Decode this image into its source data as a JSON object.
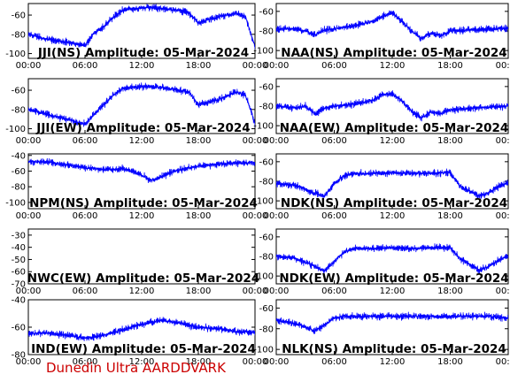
{
  "footer": "Dunedin Ultra AARDDVARK",
  "colors": {
    "trace": "#0000ff",
    "axis": "#000000",
    "footer": "#cc0000"
  },
  "chart_data": [
    {
      "type": "line",
      "title": "JJI(NS) Amplitude: 05-Mar-2024",
      "xlabel": "",
      "ylabel": "",
      "ylim": [
        -105,
        -48
      ],
      "xticks": [
        "00:00",
        "06:00",
        "12:00",
        "18:00",
        "00:00"
      ],
      "yticks": [
        -100,
        -80,
        -60
      ],
      "grid": false,
      "series": [
        {
          "x": [
            0,
            2,
            4,
            5,
            6,
            7,
            8,
            9,
            10,
            12,
            14,
            16,
            17,
            18,
            20,
            22,
            23,
            24
          ],
          "values": [
            -80,
            -85,
            -88,
            -90,
            -92,
            -78,
            -72,
            -62,
            -55,
            -52,
            -53,
            -55,
            -58,
            -68,
            -62,
            -58,
            -62,
            -93
          ]
        }
      ]
    },
    {
      "type": "line",
      "title": "NAA(NS) Amplitude: 05-Mar-2024",
      "xlabel": "",
      "ylabel": "",
      "ylim": [
        -108,
        -52
      ],
      "xticks": [
        "00:00",
        "06:00",
        "12:00",
        "18:00",
        "00:00"
      ],
      "yticks": [
        -100,
        -80,
        -60
      ],
      "grid": false,
      "series": [
        {
          "x": [
            0,
            2,
            3,
            4,
            5,
            6,
            8,
            10,
            11,
            12,
            13,
            14,
            15,
            16,
            17,
            18,
            20,
            22,
            24
          ],
          "values": [
            -78,
            -78,
            -80,
            -84,
            -79,
            -78,
            -75,
            -70,
            -65,
            -62,
            -70,
            -80,
            -88,
            -82,
            -85,
            -80,
            -79,
            -78,
            -77
          ]
        }
      ]
    },
    {
      "type": "line",
      "title": "JJI(EW) Amplitude: 05-Mar-2024",
      "xlabel": "",
      "ylabel": "",
      "ylim": [
        -105,
        -48
      ],
      "xticks": [
        "00:00",
        "06:00",
        "12:00",
        "18:00",
        "00:00"
      ],
      "yticks": [
        -100,
        -80,
        -60
      ],
      "grid": false,
      "series": [
        {
          "x": [
            0,
            2,
            4,
            5,
            6,
            7,
            8,
            9,
            10,
            12,
            14,
            16,
            17,
            18,
            20,
            22,
            23,
            24
          ],
          "values": [
            -80,
            -85,
            -90,
            -93,
            -95,
            -85,
            -75,
            -65,
            -58,
            -56,
            -57,
            -60,
            -62,
            -75,
            -70,
            -62,
            -65,
            -95
          ]
        }
      ]
    },
    {
      "type": "line",
      "title": "NAA(EW) Amplitude: 05-Mar-2024",
      "xlabel": "",
      "ylabel": "",
      "ylim": [
        -108,
        -52
      ],
      "xticks": [
        "00:00",
        "06:00",
        "12:00",
        "18:00",
        "00:00"
      ],
      "yticks": [
        -100,
        -80,
        -60
      ],
      "grid": false,
      "series": [
        {
          "x": [
            0,
            2,
            3,
            4,
            5,
            6,
            8,
            10,
            11,
            12,
            13,
            14,
            15,
            16,
            17,
            18,
            20,
            22,
            24
          ],
          "values": [
            -80,
            -82,
            -80,
            -88,
            -82,
            -80,
            -78,
            -74,
            -68,
            -67,
            -75,
            -85,
            -92,
            -86,
            -88,
            -84,
            -82,
            -81,
            -80
          ]
        }
      ]
    },
    {
      "type": "line",
      "title": "NPM(NS) Amplitude: 05-Mar-2024",
      "xlabel": "",
      "ylabel": "",
      "ylim": [
        -108,
        -38
      ],
      "xticks": [
        "00:00",
        "06:00",
        "12:00",
        "18:00",
        "00:00"
      ],
      "yticks": [
        -100,
        -80,
        -60,
        -40
      ],
      "grid": false,
      "series": [
        {
          "x": [
            0,
            2,
            4,
            6,
            8,
            9,
            10,
            11,
            12,
            13,
            14,
            15,
            16,
            18,
            20,
            22,
            24
          ],
          "values": [
            -48,
            -48,
            -52,
            -56,
            -58,
            -58,
            -57,
            -60,
            -65,
            -72,
            -68,
            -62,
            -58,
            -54,
            -51,
            -50,
            -49
          ]
        }
      ]
    },
    {
      "type": "line",
      "title": "NDK(NS) Amplitude: 05-Mar-2024",
      "xlabel": "",
      "ylabel": "",
      "ylim": [
        -108,
        -52
      ],
      "xticks": [
        "00:00",
        "06:00",
        "12:00",
        "18:00",
        "00:00"
      ],
      "yticks": [
        -100,
        -80,
        -60
      ],
      "grid": false,
      "series": [
        {
          "x": [
            0,
            2,
            3,
            4,
            5,
            6,
            7,
            8,
            10,
            12,
            14,
            16,
            18,
            19,
            20,
            21,
            22,
            23,
            24
          ],
          "values": [
            -82,
            -84,
            -88,
            -92,
            -95,
            -82,
            -75,
            -72,
            -72,
            -71,
            -72,
            -72,
            -71,
            -85,
            -90,
            -95,
            -92,
            -85,
            -82
          ]
        }
      ]
    },
    {
      "type": "line",
      "title": "NWC(EW) Amplitude: 05-Mar-2024",
      "xlabel": "",
      "ylabel": "",
      "ylim": [
        -70,
        -25
      ],
      "xticks": [
        "00:00",
        "06:00",
        "12:00",
        "18:00",
        "00:00"
      ],
      "yticks": [
        -70,
        -60,
        -50,
        -40,
        -30
      ],
      "grid": false,
      "series": []
    },
    {
      "type": "line",
      "title": "NDK(EW) Amplitude: 05-Mar-2024",
      "xlabel": "",
      "ylabel": "",
      "ylim": [
        -108,
        -52
      ],
      "xticks": [
        "00:00",
        "06:00",
        "12:00",
        "18:00",
        "00:00"
      ],
      "yticks": [
        -100,
        -80,
        -60
      ],
      "grid": false,
      "series": [
        {
          "x": [
            0,
            2,
            3,
            4,
            5,
            6,
            7,
            8,
            10,
            12,
            14,
            16,
            18,
            19,
            20,
            21,
            22,
            23,
            24
          ],
          "values": [
            -80,
            -82,
            -86,
            -90,
            -95,
            -85,
            -76,
            -72,
            -72,
            -71,
            -72,
            -71,
            -71,
            -82,
            -88,
            -94,
            -90,
            -84,
            -80
          ]
        }
      ]
    },
    {
      "type": "line",
      "title": "IND(EW) Amplitude: 05-Mar-2024",
      "xlabel": "",
      "ylabel": "",
      "ylim": [
        -80,
        -40
      ],
      "xticks": [
        "00:00",
        "06:00",
        "12:00",
        "18:00",
        "00:00"
      ],
      "yticks": [
        -80,
        -60,
        -40
      ],
      "grid": false,
      "series": [
        {
          "x": [
            0,
            2,
            4,
            6,
            8,
            10,
            12,
            14,
            16,
            18,
            20,
            22,
            24
          ],
          "values": [
            -65,
            -64,
            -66,
            -68,
            -66,
            -62,
            -58,
            -55,
            -57,
            -60,
            -61,
            -63,
            -64
          ]
        }
      ]
    },
    {
      "type": "line",
      "title": "NLK(NS) Amplitude: 05-Mar-2024",
      "xlabel": "",
      "ylabel": "",
      "ylim": [
        -105,
        -52
      ],
      "xticks": [
        "00:00",
        "06:00",
        "12:00",
        "18:00",
        "00:00"
      ],
      "yticks": [
        -100,
        -80,
        -60
      ],
      "grid": false,
      "series": [
        {
          "x": [
            0,
            2,
            3,
            4,
            5,
            6,
            7,
            8,
            10,
            12,
            14,
            16,
            18,
            20,
            22,
            24
          ],
          "values": [
            -72,
            -75,
            -78,
            -82,
            -76,
            -70,
            -68,
            -68,
            -68,
            -68,
            -68,
            -68,
            -68,
            -68,
            -68,
            -70
          ]
        }
      ]
    }
  ]
}
